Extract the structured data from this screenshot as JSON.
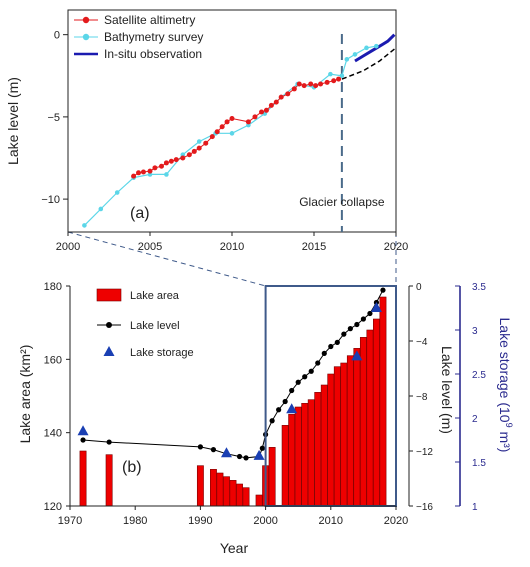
{
  "colors": {
    "sat": "#e31a1c",
    "bathy": "#5bd6e8",
    "insitu": "#1b1bb0",
    "area": "#ee0000",
    "level": "#000000",
    "storage": "#1a3fb3",
    "zoom": "#3f5a8a",
    "collapse": "#4a6b8a",
    "storage_axis": "#2b2b8f"
  },
  "chart_data": [
    {
      "type": "scatter",
      "panel_label": "(a)",
      "ylabel": "Lake level (m)",
      "xlim": [
        2000,
        2020
      ],
      "ylim": [
        -12,
        1.5
      ],
      "xticks": [
        2000,
        2005,
        2010,
        2015,
        2020
      ],
      "yticks": [
        0,
        -5,
        -10
      ],
      "annotation": {
        "text": "Glacier collapse",
        "x": 2016.7
      },
      "legend_position": "top-left",
      "series": [
        {
          "name": "Satellite altimetry",
          "points": [
            [
              2004.0,
              -8.6
            ],
            [
              2004.3,
              -8.4
            ],
            [
              2004.6,
              -8.35
            ],
            [
              2005.0,
              -8.3
            ],
            [
              2005.3,
              -8.1
            ],
            [
              2005.7,
              -8.0
            ],
            [
              2006.0,
              -7.8
            ],
            [
              2006.3,
              -7.7
            ],
            [
              2006.6,
              -7.6
            ],
            [
              2007.0,
              -7.5
            ],
            [
              2007.4,
              -7.3
            ],
            [
              2007.7,
              -7.1
            ],
            [
              2008.0,
              -6.9
            ],
            [
              2008.4,
              -6.6
            ],
            [
              2008.8,
              -6.2
            ],
            [
              2009.1,
              -5.9
            ],
            [
              2009.4,
              -5.6
            ],
            [
              2009.7,
              -5.3
            ],
            [
              2010.0,
              -5.1
            ],
            [
              2011.0,
              -5.3
            ],
            [
              2011.4,
              -5.0
            ],
            [
              2011.8,
              -4.7
            ],
            [
              2012.1,
              -4.6
            ],
            [
              2012.4,
              -4.3
            ],
            [
              2012.7,
              -4.1
            ],
            [
              2013.0,
              -3.8
            ],
            [
              2013.4,
              -3.6
            ],
            [
              2013.8,
              -3.3
            ],
            [
              2014.1,
              -3.0
            ],
            [
              2014.4,
              -3.1
            ],
            [
              2014.8,
              -3.0
            ],
            [
              2015.1,
              -3.1
            ],
            [
              2015.4,
              -3.0
            ],
            [
              2015.8,
              -2.9
            ],
            [
              2016.2,
              -2.8
            ],
            [
              2016.5,
              -2.7
            ]
          ]
        },
        {
          "name": "Bathymetry survey",
          "points": [
            [
              2001.0,
              -11.6
            ],
            [
              2002.0,
              -10.6
            ],
            [
              2003.0,
              -9.6
            ],
            [
              2004.0,
              -8.7
            ],
            [
              2005.0,
              -8.5
            ],
            [
              2006.0,
              -8.5
            ],
            [
              2007.0,
              -7.3
            ],
            [
              2008.0,
              -6.5
            ],
            [
              2009.0,
              -6.0
            ],
            [
              2010.0,
              -6.0
            ],
            [
              2011.0,
              -5.5
            ],
            [
              2012.0,
              -4.8
            ],
            [
              2013.0,
              -3.8
            ],
            [
              2014.0,
              -3.0
            ],
            [
              2015.0,
              -3.2
            ],
            [
              2016.0,
              -2.4
            ],
            [
              2016.7,
              -2.5
            ],
            [
              2017.0,
              -1.5
            ],
            [
              2017.5,
              -1.2
            ],
            [
              2018.2,
              -0.8
            ],
            [
              2018.8,
              -0.7
            ]
          ]
        },
        {
          "name": "In-situ observation",
          "points": [
            [
              2017.5,
              -1.6
            ],
            [
              2018.0,
              -1.3
            ],
            [
              2018.5,
              -1.0
            ],
            [
              2019.0,
              -0.7
            ],
            [
              2019.5,
              -0.4
            ],
            [
              2019.9,
              0.0
            ]
          ]
        },
        {
          "name": "",
          "style": "dashed",
          "points": [
            [
              2016.7,
              -2.7
            ],
            [
              2018.0,
              -2.2
            ],
            [
              2019.0,
              -1.6
            ],
            [
              2020.0,
              -0.8
            ]
          ]
        }
      ]
    },
    {
      "type": "bar",
      "panel_label": "(b)",
      "xlabel": "Year",
      "ylabel": "Lake area (km²)",
      "ylabel_right1": "Lake level (m)",
      "ylabel_right2_prefix": "Lake storage (10",
      "ylabel_right2_exp": "9",
      "ylabel_right2_suffix": " m³)",
      "xlim": [
        1970,
        2020
      ],
      "ylim": [
        120,
        180
      ],
      "ylim_level": [
        -16,
        0
      ],
      "ylim_storage": [
        1,
        3.5
      ],
      "xticks": [
        1970,
        1980,
        1990,
        2000,
        2010,
        2020
      ],
      "yticks": [
        120,
        140,
        160,
        180
      ],
      "yticks_level": [
        0,
        -4,
        -8,
        -12,
        -16
      ],
      "yticks_storage": [
        3.5,
        3,
        2.5,
        2,
        1.5,
        1
      ],
      "legend_position": "top-left",
      "zoom_box": {
        "x": [
          2000,
          2020
        ],
        "y_level": [
          -16,
          0
        ]
      },
      "series": [
        {
          "name": "Lake area",
          "x": [
            1972,
            1976,
            1990,
            1992,
            1993,
            1994,
            1995,
            1996,
            1997,
            1999,
            2000,
            2001,
            2003,
            2004,
            2005,
            2006,
            2007,
            2008,
            2009,
            2010,
            2011,
            2012,
            2013,
            2014,
            2015,
            2016,
            2017,
            2018
          ],
          "values": [
            135,
            134,
            131,
            130,
            129,
            128,
            127,
            126,
            125,
            123,
            131,
            136,
            142,
            145,
            147,
            148,
            149,
            151,
            153,
            156,
            158,
            159,
            161,
            163,
            166,
            168,
            171,
            177
          ]
        },
        {
          "name": "Lake level",
          "x": [
            1972,
            1976,
            1990,
            1992,
            1994,
            1996,
            1997,
            1999,
            1999.5,
            2000,
            2001,
            2002,
            2003,
            2004,
            2005,
            2006,
            2007,
            2008,
            2009,
            2010,
            2011,
            2012,
            2013,
            2014,
            2015,
            2016,
            2017,
            2018
          ],
          "values": [
            -11.2,
            -11.35,
            -11.7,
            -11.9,
            -12.2,
            -12.4,
            -12.5,
            -12.4,
            -11.8,
            -10.8,
            -9.8,
            -9.0,
            -8.4,
            -7.6,
            -7.0,
            -6.6,
            -6.2,
            -5.6,
            -4.9,
            -4.4,
            -4.1,
            -3.5,
            -3.1,
            -2.8,
            -2.4,
            -2.0,
            -1.2,
            -0.3
          ]
        },
        {
          "name": "Lake storage",
          "x": [
            1972,
            1994,
            1999,
            2004,
            2014,
            2017
          ],
          "values": [
            1.85,
            1.6,
            1.57,
            2.1,
            2.7,
            3.25
          ]
        }
      ]
    }
  ]
}
